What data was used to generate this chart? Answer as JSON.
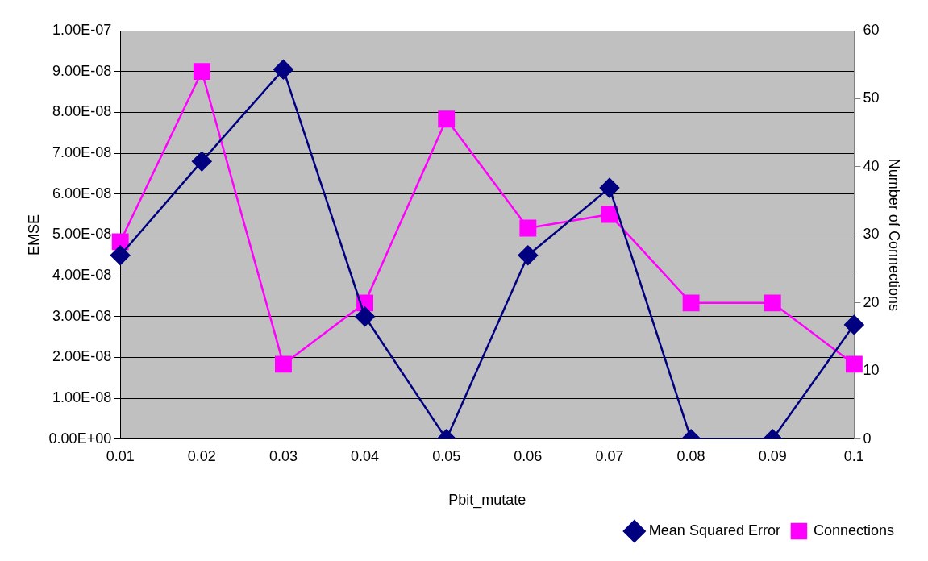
{
  "chart_data": {
    "type": "line",
    "xlabel": "Pbit_mutate",
    "ylabel": "EMSE",
    "y2label": "Number of Connections",
    "categories": [
      "0.01",
      "0.02",
      "0.03",
      "0.04",
      "0.05",
      "0.06",
      "0.07",
      "0.08",
      "0.09",
      "0.1"
    ],
    "series": [
      {
        "name": "Mean Squared Error",
        "color": "#000080",
        "marker": "diamond",
        "values": [
          4.5e-08,
          6.8e-08,
          9.05e-08,
          3e-08,
          0,
          4.5e-08,
          6.15e-08,
          0,
          0,
          2.8e-08
        ]
      },
      {
        "name": "Connections",
        "color": "#ff00ff",
        "marker": "square",
        "axis": "y2",
        "values": [
          29,
          54,
          11,
          20,
          47,
          31,
          33,
          20,
          20,
          11
        ]
      }
    ],
    "ylim": [
      0,
      1e-07
    ],
    "yticks": [
      {
        "value": 0,
        "label": "0.00E+00"
      },
      {
        "value": 1e-08,
        "label": "1.00E-08"
      },
      {
        "value": 2e-08,
        "label": "2.00E-08"
      },
      {
        "value": 3e-08,
        "label": "3.00E-08"
      },
      {
        "value": 4e-08,
        "label": "4.00E-08"
      },
      {
        "value": 5e-08,
        "label": "5.00E-08"
      },
      {
        "value": 6e-08,
        "label": "6.00E-08"
      },
      {
        "value": 7e-08,
        "label": "7.00E-08"
      },
      {
        "value": 8e-08,
        "label": "8.00E-08"
      },
      {
        "value": 9e-08,
        "label": "9.00E-08"
      },
      {
        "value": 1e-07,
        "label": "1.00E-07"
      }
    ],
    "y2lim": [
      0,
      60
    ],
    "y2ticks": [
      0,
      10,
      20,
      30,
      40,
      50,
      60
    ],
    "grid": "y",
    "legend": "bottom right",
    "line_style": "solid"
  }
}
